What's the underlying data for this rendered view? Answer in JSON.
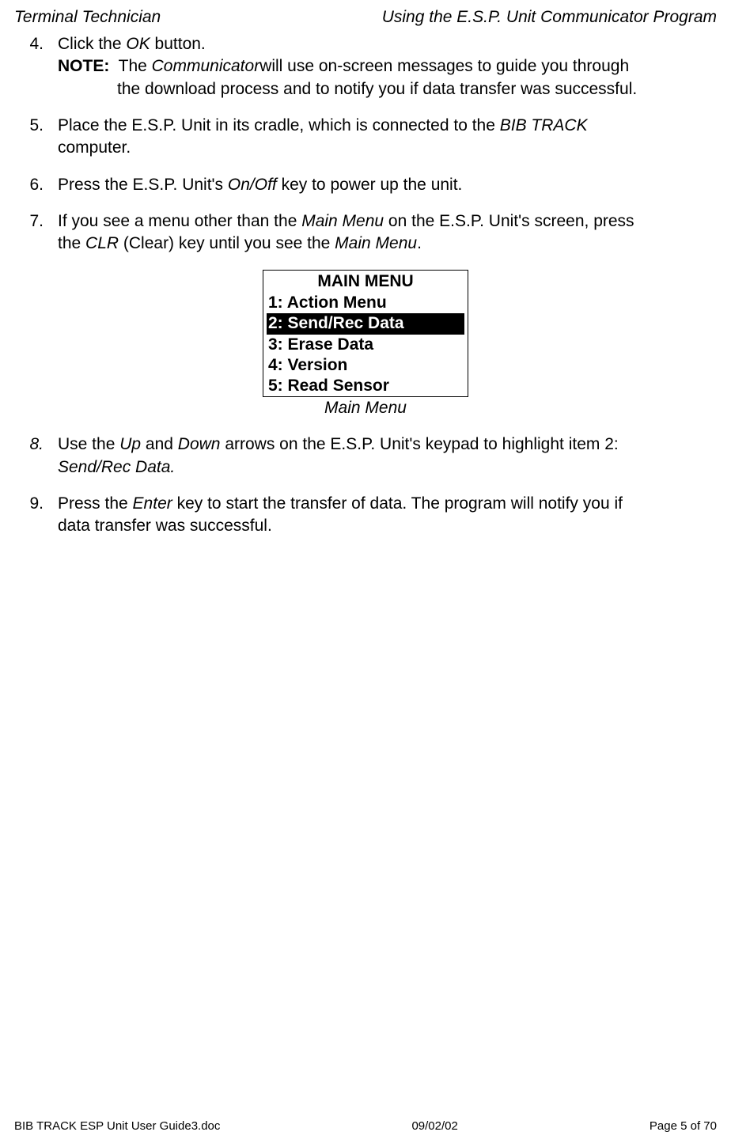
{
  "header": {
    "left": "Terminal Technician",
    "right": "Using the E.S.P. Unit Communicator Program"
  },
  "items": {
    "n4": "4.",
    "n5": "5.",
    "n6": "6.",
    "n7": "7.",
    "n8": "8.",
    "n9": "9.",
    "t4a": "Click the ",
    "t4b": "OK",
    "t4c": " button.",
    "noteLabel": "NOTE:",
    "noteA": "  The ",
    "noteB": "Communicator",
    "noteC": " will use on-screen messages to guide you through",
    "noteD": "the download process and to notify you if data transfer was successful.",
    "t5a": "Place the E.S.P. Unit in its cradle, which is connected to the ",
    "t5b": "BIB TRACK",
    "t5c": "computer.",
    "t6a": "Press the E.S.P. Unit's ",
    "t6b": "On/Off",
    "t6c": " key to power up the unit.",
    "t7a": "If you see a menu other than the ",
    "t7b": "Main Menu",
    "t7c": " on the E.S.P. Unit's screen, press",
    "t7d": "the ",
    "t7e": "CLR",
    "t7f": " (Clear) key until you see the ",
    "t7g": "Main Menu",
    "t7h": ".",
    "t8a": "Use the ",
    "t8b": "Up",
    "t8c": " and ",
    "t8d": "Down",
    "t8e": " arrows on the E.S.P. Unit's keypad to highlight item 2:",
    "t8f": "Send/Rec Data.",
    "t9a": "Press the ",
    "t9b": "Enter",
    "t9c": " key to start the transfer of data.  The program will notify you if",
    "t9d": "data transfer was successful."
  },
  "menu": {
    "title": "MAIN MENU",
    "r1": "1: Action Menu",
    "r2": "2: Send/Rec Data",
    "r3": "3: Erase Data",
    "r4": "4: Version",
    "r5": "5: Read Sensor",
    "caption": "Main Menu"
  },
  "footer": {
    "left": "BIB TRACK  ESP Unit User Guide3.doc",
    "center": "09/02/02",
    "right": "Page 5 of 70"
  }
}
